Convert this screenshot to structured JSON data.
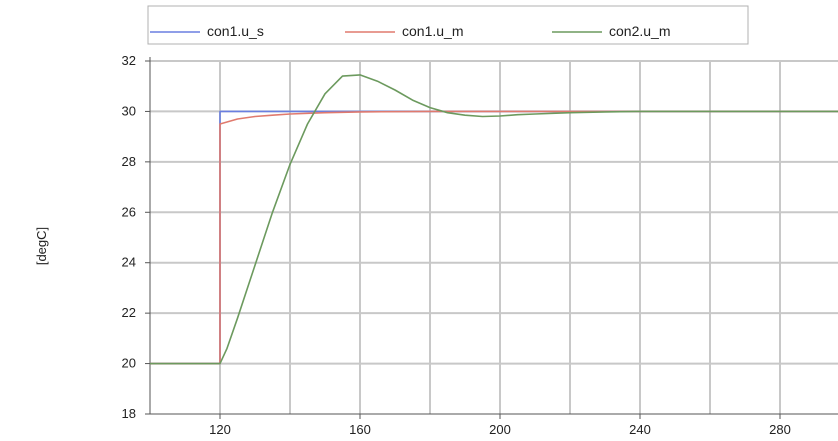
{
  "chart_data": {
    "type": "line",
    "title": "",
    "xlabel": "",
    "ylabel": "[degC]",
    "xlim": [
      100,
      300
    ],
    "ylim": [
      18,
      32
    ],
    "x_ticks": [
      120,
      160,
      200,
      240,
      280
    ],
    "x_tick_labels": [
      "120",
      "160",
      "200",
      "240",
      "280"
    ],
    "y_ticks": [
      18,
      20,
      22,
      24,
      26,
      28,
      30,
      32
    ],
    "y_tick_labels": [
      "18",
      "20",
      "22",
      "24",
      "26",
      "28",
      "30",
      "32"
    ],
    "x_grid_every": 20,
    "grid": true,
    "legend_position": "top",
    "series": [
      {
        "name": "con1.u_s",
        "color": "#6a7fe0",
        "x": [
          100,
          120,
          120,
          300
        ],
        "y": [
          20,
          20,
          30,
          30
        ]
      },
      {
        "name": "con1.u_m",
        "color": "#e07a6e",
        "x": [
          100,
          120,
          120,
          125,
          130,
          135,
          140,
          150,
          160,
          180,
          200,
          300
        ],
        "y": [
          20,
          20,
          29.5,
          29.7,
          29.8,
          29.85,
          29.9,
          29.95,
          29.98,
          30,
          30,
          30
        ]
      },
      {
        "name": "con2.u_m",
        "color": "#6c9a5e",
        "x": [
          100,
          120,
          122,
          125,
          130,
          135,
          140,
          145,
          150,
          155,
          160,
          165,
          170,
          175,
          180,
          185,
          190,
          195,
          200,
          205,
          210,
          220,
          230,
          240,
          260,
          280,
          300
        ],
        "y": [
          20,
          20,
          20.6,
          21.8,
          23.9,
          26.0,
          27.9,
          29.5,
          30.7,
          31.4,
          31.45,
          31.2,
          30.85,
          30.45,
          30.15,
          29.95,
          29.85,
          29.8,
          29.82,
          29.87,
          29.9,
          29.95,
          29.98,
          30.0,
          30.0,
          30.0,
          30.0
        ]
      }
    ]
  }
}
